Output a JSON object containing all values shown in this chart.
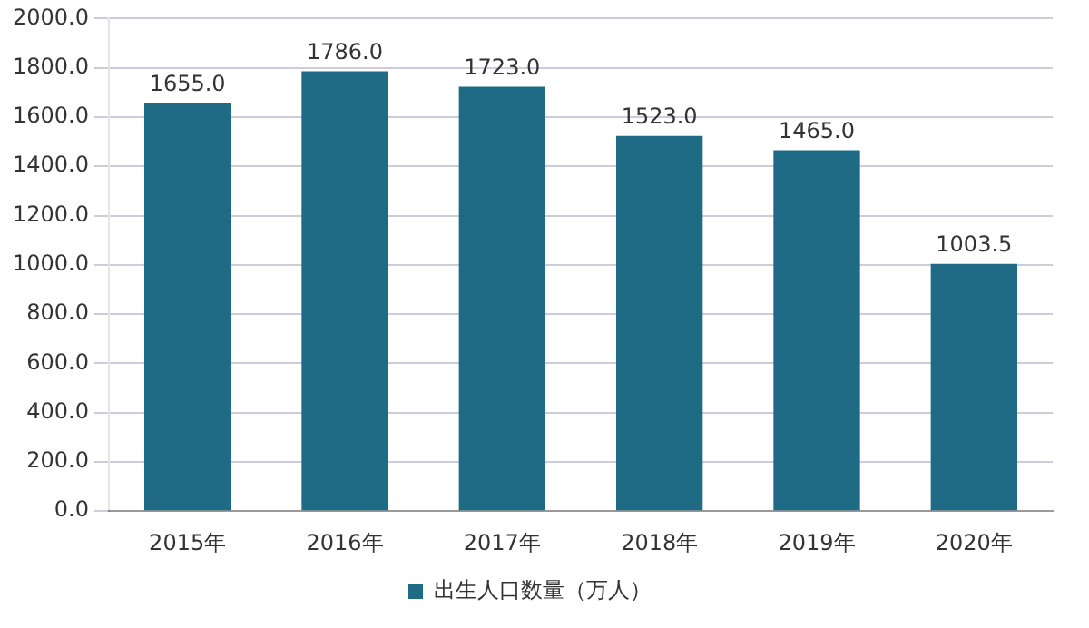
{
  "chart_data": {
    "type": "bar",
    "categories": [
      "2015年",
      "2016年",
      "2017年",
      "2018年",
      "2019年",
      "2020年"
    ],
    "series": [
      {
        "name": "出生人口数量（万人）",
        "color": "#1f6b85",
        "values": [
          1655.0,
          1786.0,
          1723.0,
          1523.0,
          1465.0,
          1003.5
        ],
        "value_labels": [
          "1655.0",
          "1786.0",
          "1723.0",
          "1523.0",
          "1465.0",
          "1003.5"
        ]
      }
    ],
    "ylim": [
      0,
      2000
    ],
    "yticks": [
      {
        "value": 0,
        "label": "0.0"
      },
      {
        "value": 200,
        "label": "200.0"
      },
      {
        "value": 400,
        "label": "400.0"
      },
      {
        "value": 600,
        "label": "600.0"
      },
      {
        "value": 800,
        "label": "800.0"
      },
      {
        "value": 1000,
        "label": "1000.0"
      },
      {
        "value": 1200,
        "label": "1200.0"
      },
      {
        "value": 1400,
        "label": "1400.0"
      },
      {
        "value": 1600,
        "label": "1600.0"
      },
      {
        "value": 1800,
        "label": "1800.0"
      },
      {
        "value": 2000,
        "label": "2000.0"
      }
    ],
    "grid": "y",
    "legend": "bottom"
  }
}
